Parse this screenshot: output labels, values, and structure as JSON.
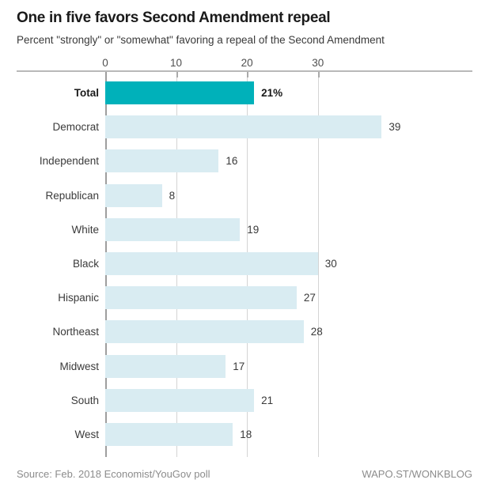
{
  "header": {
    "title": "One in five favors Second Amendment repeal",
    "subtitle": "Percent \"strongly\" or \"somewhat\" favoring a repeal of the Second Amendment"
  },
  "footer": {
    "source": "Source: Feb. 2018 Economist/YouGov poll",
    "credit": "WAPO.ST/WONKBLOG"
  },
  "chart_data": {
    "type": "bar",
    "orientation": "horizontal",
    "title": "One in five favors Second Amendment repeal",
    "subtitle": "Percent \"strongly\" or \"somewhat\" favoring a repeal of the Second Amendment",
    "categories": [
      "Total",
      "Democrat",
      "Independent",
      "Republican",
      "White",
      "Black",
      "Hispanic",
      "Northeast",
      "Midwest",
      "South",
      "West"
    ],
    "values": [
      21,
      39,
      16,
      8,
      19,
      30,
      27,
      28,
      17,
      21,
      18
    ],
    "value_labels": [
      "21%",
      "39",
      "16",
      "8",
      "19",
      "30",
      "27",
      "28",
      "17",
      "21",
      "18"
    ],
    "highlight_category": "Total",
    "x_ticks": [
      0,
      10,
      20,
      30
    ],
    "xlim": [
      0,
      51.8
    ],
    "grid": "vertical",
    "legend": "none",
    "colors": {
      "highlight_bar": "#00b1ba",
      "bar": "#d9ecf2",
      "gridline": "#d4d4d4",
      "zero_line": "#9e9e9e",
      "axis_line": "#b9b9b9",
      "title_text": "#1a1a1a",
      "text": "#3a3a3a",
      "muted_text": "#8c8c8c"
    }
  }
}
